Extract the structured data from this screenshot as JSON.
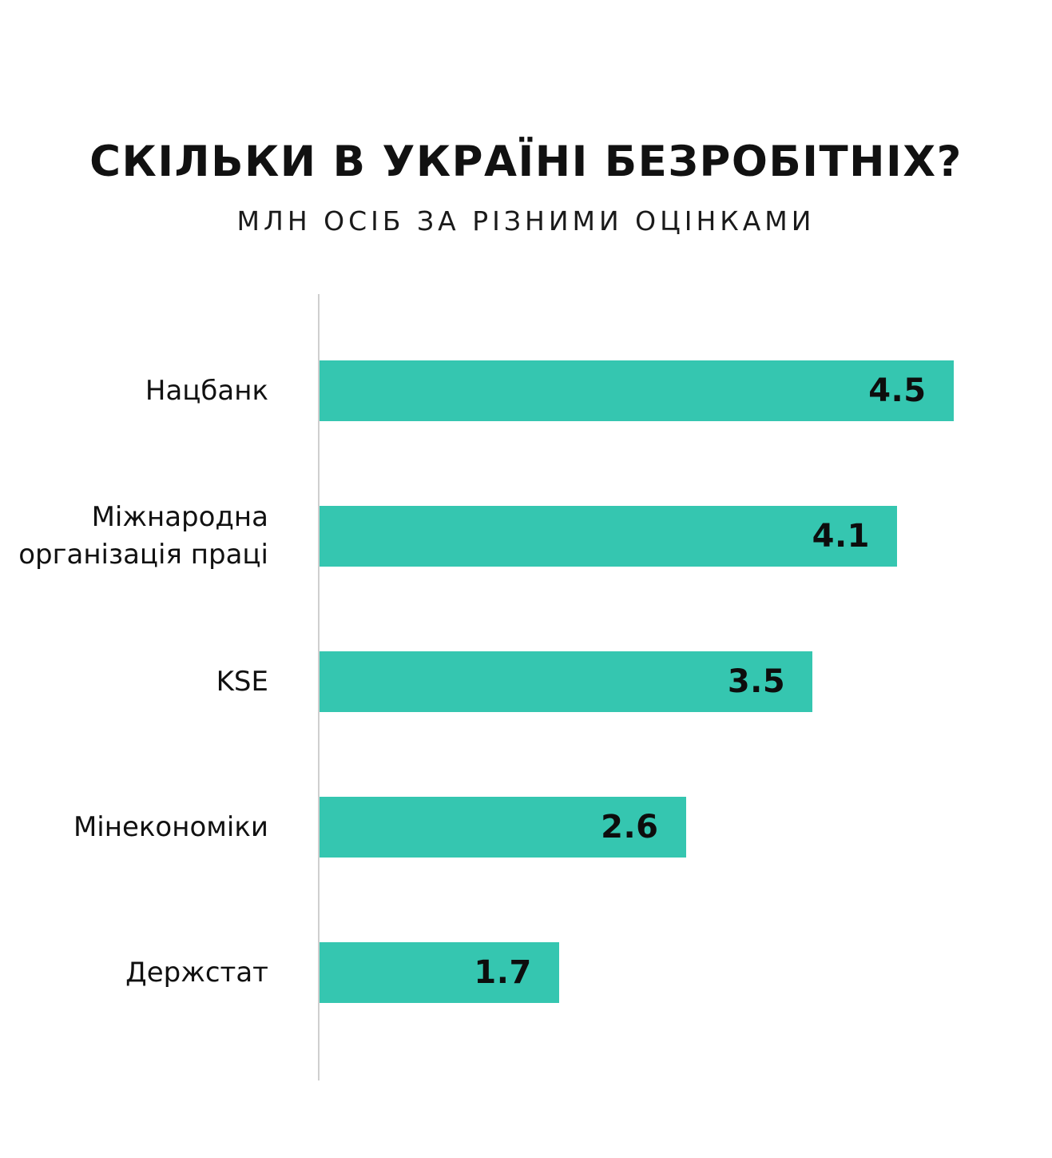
{
  "header": {
    "title": "СКІЛЬКИ В УКРАЇНІ БЕЗРОБІТНІХ?",
    "subtitle": "МЛН ОСІБ ЗА РІЗНИМИ ОЦІНКАМИ"
  },
  "colors": {
    "bar": "#35c6b0",
    "text": "#111111",
    "axis": "#cfcfcf",
    "background": "#ffffff"
  },
  "chart_data": {
    "type": "bar",
    "orientation": "horizontal",
    "title": "СКІЛЬКИ В УКРАЇНІ БЕЗРОБІТНІХ?",
    "subtitle": "МЛН ОСІБ ЗА РІЗНИМИ ОЦІНКАМИ",
    "categories": [
      "Нацбанк",
      "Міжнародна організація праці",
      "KSE",
      "Мінекономіки",
      "Держстат"
    ],
    "values": [
      4.5,
      4.1,
      3.5,
      2.6,
      1.7
    ],
    "value_labels": [
      "4.5",
      "4.1",
      "3.5",
      "2.6",
      "1.7"
    ],
    "xlabel": "",
    "ylabel": "",
    "xlim": [
      0,
      5.2
    ],
    "grid": false,
    "legend": false,
    "bar_color": "#35c6b0"
  }
}
